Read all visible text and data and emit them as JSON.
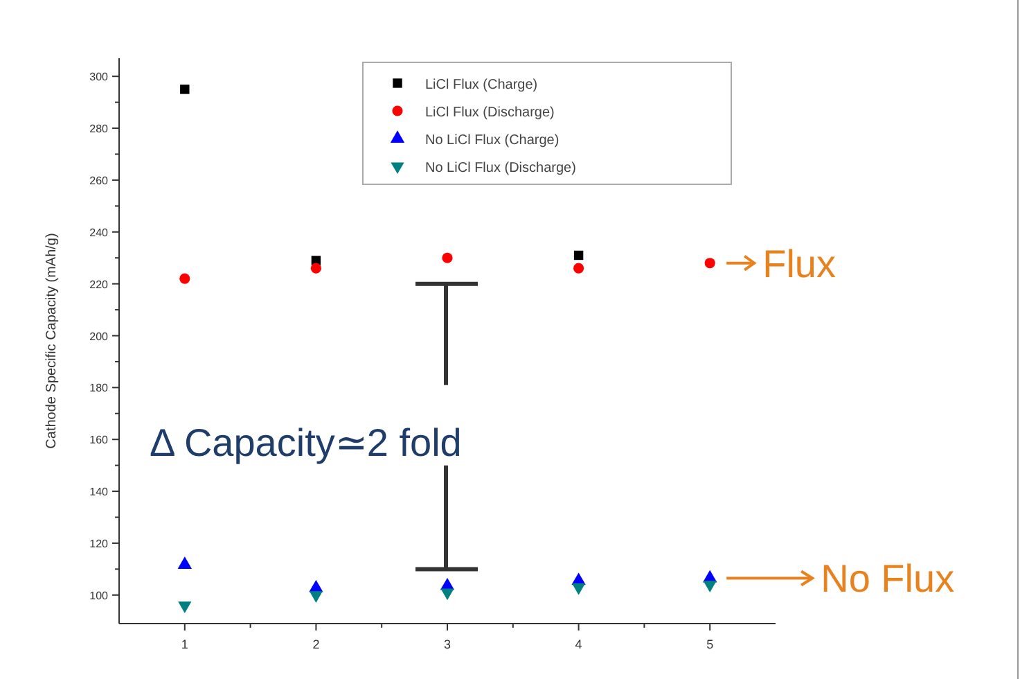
{
  "chart_data": {
    "type": "scatter",
    "ylabel": "Cathode Specific Capacity (mAh/g)",
    "x": [
      1,
      2,
      3,
      4,
      5
    ],
    "xlim": [
      0.5,
      5.5
    ],
    "xticks": [
      1,
      2,
      3,
      4,
      5
    ],
    "ylim": [
      89,
      307
    ],
    "yticks": [
      100,
      120,
      140,
      160,
      180,
      200,
      220,
      240,
      260,
      280,
      300
    ],
    "grid": false,
    "legend": "top",
    "series": [
      {
        "name": "LiCl Flux (Charge)",
        "color": "#000000",
        "marker": "square",
        "values": [
          295,
          229,
          null,
          231,
          null
        ]
      },
      {
        "name": "LiCl Flux (Discharge)",
        "color": "#ff0000",
        "marker": "circle",
        "values": [
          222,
          226,
          230,
          226,
          228
        ]
      },
      {
        "name": "No LiCl Flux (Charge)",
        "color": "#0000ff",
        "marker": "triangle",
        "values": [
          111.7,
          102.7,
          103.5,
          105.5,
          106.5
        ]
      },
      {
        "name": "No LiCl Flux (Discharge)",
        "color": "#008080",
        "marker": "triangle-down",
        "values": [
          96,
          100,
          101,
          103,
          104
        ]
      }
    ],
    "annotations": [
      "Δ Capacity≃2 fold",
      "Flux",
      "No Flux"
    ]
  }
}
